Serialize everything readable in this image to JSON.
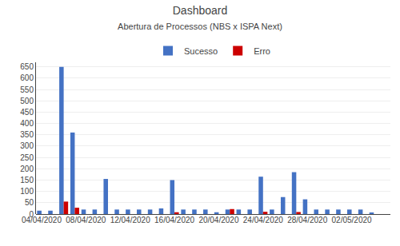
{
  "chart_data": {
    "type": "bar",
    "title": "Dashboard",
    "subtitle": "Abertura de Processos (NBS x ISPA Next)",
    "categories": [
      "04/04/2020",
      null,
      null,
      null,
      "08/04/2020",
      null,
      null,
      null,
      "12/04/2020",
      null,
      null,
      null,
      "16/04/2020",
      null,
      null,
      null,
      "20/04/2020",
      null,
      null,
      null,
      "24/04/2020",
      null,
      null,
      null,
      "28/04/2020",
      null,
      null,
      null,
      "02/05/2020",
      null,
      null,
      null
    ],
    "series": [
      {
        "name": "Sucesso",
        "color": "#4472c4",
        "values": [
          15,
          15,
          650,
          360,
          20,
          20,
          155,
          20,
          20,
          20,
          20,
          25,
          150,
          20,
          20,
          20,
          8,
          20,
          20,
          20,
          165,
          20,
          75,
          185,
          65,
          20,
          20,
          20,
          20,
          20,
          5,
          0
        ]
      },
      {
        "name": "Erro",
        "color": "#cc0000",
        "values": [
          0,
          0,
          55,
          28,
          0,
          0,
          0,
          0,
          0,
          0,
          0,
          0,
          8,
          0,
          0,
          0,
          0,
          22,
          0,
          0,
          10,
          0,
          0,
          9,
          0,
          0,
          0,
          0,
          0,
          0,
          0,
          0
        ]
      }
    ],
    "ylim": [
      0,
      670
    ],
    "yticks": [
      0,
      50,
      100,
      150,
      200,
      250,
      300,
      350,
      400,
      450,
      500,
      550,
      600,
      650
    ],
    "grid": true,
    "legend": "top"
  }
}
